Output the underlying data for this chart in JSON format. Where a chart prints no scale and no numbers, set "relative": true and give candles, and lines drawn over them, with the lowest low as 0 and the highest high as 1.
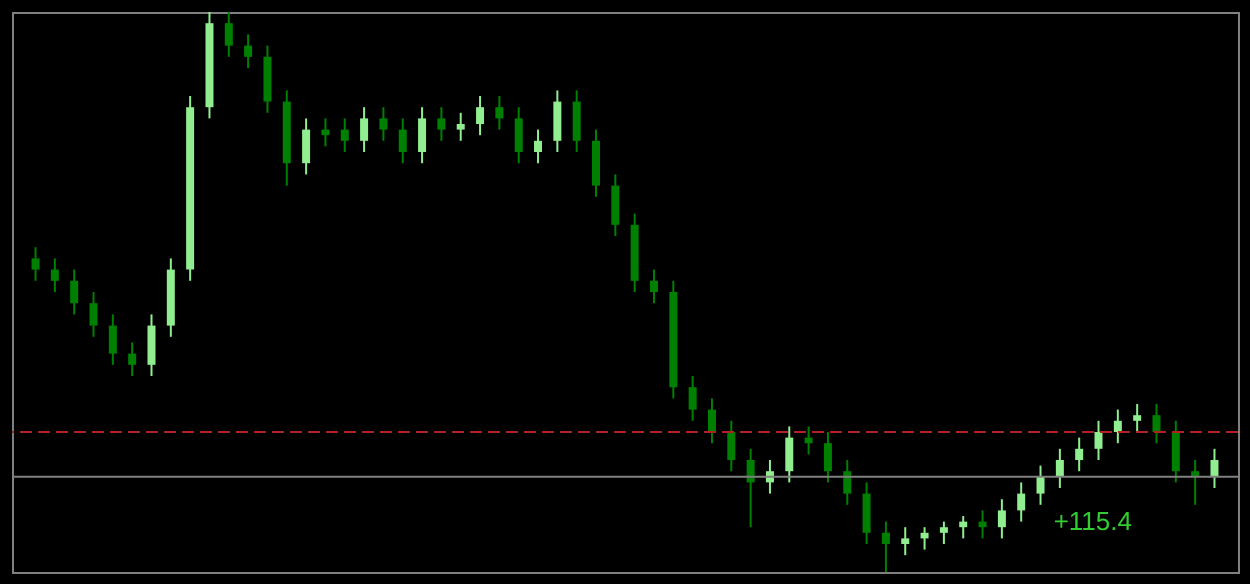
{
  "chart_data": {
    "type": "candlestick",
    "relative": true,
    "tick_labels": false,
    "categories": [
      null,
      null,
      null,
      null,
      null,
      null,
      null,
      null,
      null,
      null,
      null,
      null,
      null,
      null,
      null,
      null,
      null,
      null,
      null,
      null,
      null,
      null,
      null,
      null,
      null,
      null,
      null,
      null,
      null,
      null,
      null,
      null,
      null,
      null,
      null,
      null,
      null,
      null,
      null,
      null,
      null,
      null,
      null,
      null,
      null,
      null,
      null,
      null,
      null,
      null,
      null,
      null,
      null,
      null,
      null,
      null,
      null,
      null,
      null,
      null,
      null,
      null
    ],
    "ohlc": [
      [
        0.56,
        0.58,
        0.52,
        0.54
      ],
      [
        0.54,
        0.56,
        0.5,
        0.52
      ],
      [
        0.52,
        0.54,
        0.46,
        0.48
      ],
      [
        0.48,
        0.5,
        0.42,
        0.44
      ],
      [
        0.44,
        0.46,
        0.37,
        0.39
      ],
      [
        0.39,
        0.41,
        0.35,
        0.37
      ],
      [
        0.37,
        0.46,
        0.35,
        0.44
      ],
      [
        0.44,
        0.56,
        0.42,
        0.54
      ],
      [
        0.54,
        0.85,
        0.52,
        0.83
      ],
      [
        0.83,
        1.0,
        0.81,
        0.98
      ],
      [
        0.98,
        1.0,
        0.92,
        0.94
      ],
      [
        0.94,
        0.96,
        0.9,
        0.92
      ],
      [
        0.92,
        0.94,
        0.82,
        0.84
      ],
      [
        0.84,
        0.86,
        0.69,
        0.73
      ],
      [
        0.73,
        0.81,
        0.71,
        0.79
      ],
      [
        0.79,
        0.81,
        0.76,
        0.78
      ],
      [
        0.79,
        0.81,
        0.75,
        0.77
      ],
      [
        0.77,
        0.83,
        0.75,
        0.81
      ],
      [
        0.81,
        0.83,
        0.77,
        0.79
      ],
      [
        0.79,
        0.81,
        0.73,
        0.75
      ],
      [
        0.75,
        0.83,
        0.73,
        0.81
      ],
      [
        0.81,
        0.83,
        0.77,
        0.79
      ],
      [
        0.79,
        0.82,
        0.77,
        0.8
      ],
      [
        0.8,
        0.85,
        0.78,
        0.83
      ],
      [
        0.83,
        0.85,
        0.79,
        0.81
      ],
      [
        0.81,
        0.83,
        0.73,
        0.75
      ],
      [
        0.75,
        0.79,
        0.73,
        0.77
      ],
      [
        0.77,
        0.86,
        0.75,
        0.84
      ],
      [
        0.84,
        0.86,
        0.75,
        0.77
      ],
      [
        0.77,
        0.79,
        0.67,
        0.69
      ],
      [
        0.69,
        0.71,
        0.6,
        0.62
      ],
      [
        0.62,
        0.64,
        0.5,
        0.52
      ],
      [
        0.52,
        0.54,
        0.48,
        0.5
      ],
      [
        0.5,
        0.52,
        0.31,
        0.33
      ],
      [
        0.33,
        0.35,
        0.27,
        0.29
      ],
      [
        0.29,
        0.31,
        0.23,
        0.25
      ],
      [
        0.25,
        0.27,
        0.18,
        0.2
      ],
      [
        0.2,
        0.22,
        0.08,
        0.16
      ],
      [
        0.16,
        0.2,
        0.14,
        0.18
      ],
      [
        0.18,
        0.26,
        0.16,
        0.24
      ],
      [
        0.24,
        0.26,
        0.21,
        0.23
      ],
      [
        0.23,
        0.25,
        0.16,
        0.18
      ],
      [
        0.18,
        0.2,
        0.12,
        0.14
      ],
      [
        0.14,
        0.16,
        0.05,
        0.07
      ],
      [
        0.07,
        0.09,
        0.0,
        0.05
      ],
      [
        0.05,
        0.08,
        0.03,
        0.06
      ],
      [
        0.06,
        0.08,
        0.04,
        0.07
      ],
      [
        0.07,
        0.09,
        0.05,
        0.08
      ],
      [
        0.08,
        0.1,
        0.06,
        0.09
      ],
      [
        0.09,
        0.11,
        0.06,
        0.08
      ],
      [
        0.08,
        0.13,
        0.06,
        0.11
      ],
      [
        0.11,
        0.16,
        0.09,
        0.14
      ],
      [
        0.14,
        0.19,
        0.12,
        0.17
      ],
      [
        0.17,
        0.22,
        0.15,
        0.2
      ],
      [
        0.2,
        0.24,
        0.18,
        0.22
      ],
      [
        0.22,
        0.27,
        0.2,
        0.25
      ],
      [
        0.25,
        0.29,
        0.23,
        0.27
      ],
      [
        0.27,
        0.3,
        0.25,
        0.28
      ],
      [
        0.28,
        0.3,
        0.23,
        0.25
      ],
      [
        0.25,
        0.27,
        0.16,
        0.18
      ],
      [
        0.18,
        0.2,
        0.12,
        0.17
      ],
      [
        0.17,
        0.22,
        0.15,
        0.2
      ]
    ],
    "colors": [
      "#008000",
      "#008000",
      "#008000",
      "#008000",
      "#008000",
      "#008000",
      "#90ee90",
      "#90ee90",
      "#90ee90",
      "#90ee90",
      "#008000",
      "#008000",
      "#008000",
      "#008000",
      "#90ee90",
      "#008000",
      "#008000",
      "#90ee90",
      "#008000",
      "#008000",
      "#90ee90",
      "#008000",
      "#90ee90",
      "#90ee90",
      "#008000",
      "#008000",
      "#90ee90",
      "#90ee90",
      "#008000",
      "#008000",
      "#008000",
      "#008000",
      "#008000",
      "#008000",
      "#008000",
      "#008000",
      "#008000",
      "#008000",
      "#90ee90",
      "#90ee90",
      "#008000",
      "#008000",
      "#008000",
      "#008000",
      "#008000",
      "#90ee90",
      "#90ee90",
      "#90ee90",
      "#90ee90",
      "#008000",
      "#90ee90",
      "#90ee90",
      "#90ee90",
      "#90ee90",
      "#90ee90",
      "#90ee90",
      "#90ee90",
      "#90ee90",
      "#008000",
      "#008000",
      "#008000",
      "#90ee90"
    ],
    "ref_lines": [
      {
        "axis": "y",
        "value": 0.17,
        "color": "#808080",
        "line_style": "solid"
      },
      {
        "axis": "y",
        "value": 0.25,
        "color": "#b22222",
        "line_style": "dashed"
      }
    ],
    "annotations": [
      "+115.4"
    ]
  }
}
